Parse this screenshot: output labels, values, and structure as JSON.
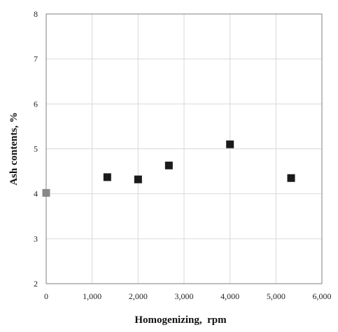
{
  "chart_data": {
    "type": "scatter",
    "title": "",
    "xlabel": "Homogenizing,  rpm",
    "ylabel": "Ash contents, %",
    "xlim": [
      0,
      6000
    ],
    "ylim": [
      2,
      8
    ],
    "x_ticks": [
      0,
      1000,
      2000,
      3000,
      4000,
      5000,
      6000
    ],
    "x_tick_labels": [
      "0",
      "1,000",
      "2,000",
      "3,000",
      "4,000",
      "5,000",
      "6,000"
    ],
    "y_ticks": [
      2,
      3,
      4,
      5,
      6,
      7,
      8
    ],
    "y_tick_labels": [
      "2",
      "3",
      "4",
      "5",
      "6",
      "7",
      "8"
    ],
    "grid": true,
    "legend": "none",
    "series": [
      {
        "marker": "square",
        "color": "#1a1a1a",
        "points": [
          {
            "x": 1330,
            "y": 4.37
          },
          {
            "x": 2000,
            "y": 4.32
          },
          {
            "x": 2670,
            "y": 4.63
          },
          {
            "x": 4000,
            "y": 5.1
          },
          {
            "x": 5330,
            "y": 4.35
          }
        ]
      },
      {
        "marker": "square",
        "color": "#888888",
        "points": [
          {
            "x": 0,
            "y": 4.02
          }
        ]
      }
    ]
  }
}
